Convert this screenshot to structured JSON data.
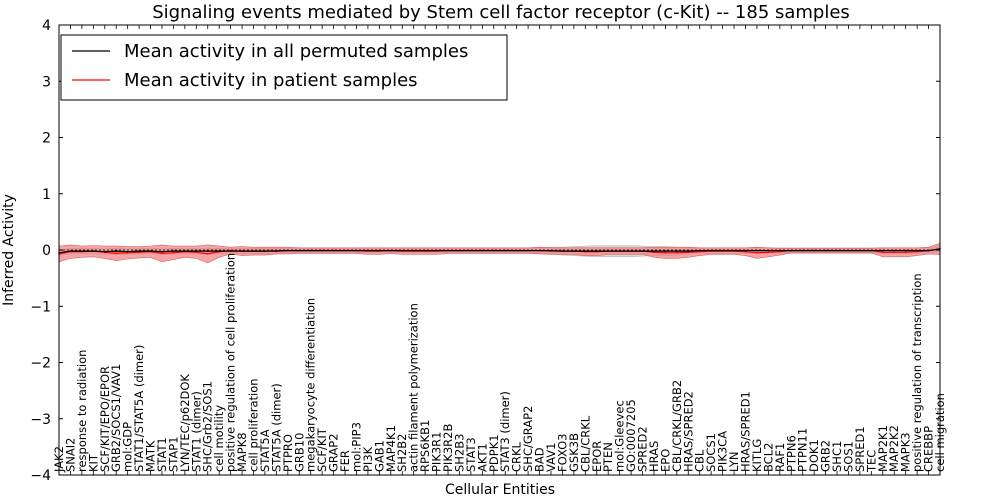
{
  "chart_data": {
    "type": "line",
    "title": "Signaling events mediated by Stem cell factor receptor (c-Kit) -- 185 samples",
    "xlabel": "Cellular Entities",
    "ylabel": "Inferred Activity",
    "ylim": [
      -4,
      4
    ],
    "yticks": [
      "4",
      "3",
      "2",
      "1",
      "0",
      "−1",
      "−2",
      "−3",
      "−4"
    ],
    "legend_position": "top-left",
    "legend": [
      "Mean activity in all permuted samples",
      "Mean activity in patient samples"
    ],
    "colors": {
      "permuted": "#000000",
      "patient": "#ff0000",
      "patient_band": "#f08080",
      "permuted_band": "#cccccc"
    },
    "categories": [
      "JAK2",
      "SNAI2",
      "response to radiation",
      "KIT",
      "SCF/KIT/EPO/EPOR",
      "GRB2/SOCS1/VAV1",
      "mol:GDP",
      "STAT1/STAT5A (dimer)",
      "MATK",
      "STAT1",
      "STAP1",
      "LYN/TEC/p62DOK",
      "STAT1 (dimer)",
      "SHC/Grb2/SOS1",
      "cell motility",
      "positive regulation of cell proliferation",
      "MAPK8",
      "cell proliferation",
      "STAT5A",
      "STAT5A (dimer)",
      "PTPRO",
      "GRB10",
      "megakaryocyte differentiation",
      "SCF/KIT",
      "GRAP2",
      "FER",
      "mol:PIP3",
      "PI3K",
      "GAB1",
      "MAP4K1",
      "SH2B2",
      "actin filament polymerization",
      "RPS6KB1",
      "PIK3R1",
      "PIK3R2B",
      "SH2B3",
      "STAT3",
      "AKT1",
      "PDPK1",
      "STAT3 (dimer)",
      "CRKL",
      "SHC/GRAP2",
      "BAD",
      "VAV1",
      "FOXO3",
      "GSK3B",
      "CBL/CRKL",
      "EPOR",
      "PTEN",
      "mol:Gleevec",
      "GO:0007205",
      "SPRED2",
      "HRAS",
      "EPO",
      "CBL/CRKL/GRB2",
      "HRAS/SPRED2",
      "CBL",
      "SOCS1",
      "PIK3CA",
      "LYN",
      "HRAS/SPRED1",
      "KITLG",
      "BCL2",
      "RAF1",
      "PTPN6",
      "PTPN11",
      "DOK1",
      "GRB2",
      "SHC1",
      "SOS1",
      "SPRED1",
      "TEC",
      "MAP2K1",
      "MAP2K2",
      "MAPK3",
      "positive regulation of transcription",
      "CREBBP",
      "cell migration"
    ],
    "series": [
      {
        "name": "Mean activity in all permuted samples",
        "values": [
          -0.05,
          -0.02,
          -0.02,
          -0.02,
          -0.03,
          -0.02,
          -0.03,
          -0.02,
          -0.02,
          -0.03,
          -0.02,
          -0.02,
          -0.02,
          -0.02,
          -0.02,
          -0.02,
          -0.02,
          -0.02,
          -0.02,
          -0.02,
          -0.01,
          -0.01,
          -0.01,
          -0.01,
          -0.01,
          -0.01,
          -0.01,
          -0.01,
          -0.01,
          -0.01,
          -0.01,
          -0.01,
          -0.01,
          -0.01,
          -0.01,
          -0.01,
          -0.01,
          -0.01,
          -0.01,
          -0.01,
          -0.01,
          -0.01,
          -0.01,
          -0.01,
          -0.02,
          -0.02,
          -0.02,
          -0.02,
          -0.02,
          -0.02,
          -0.02,
          -0.02,
          -0.02,
          -0.02,
          -0.02,
          -0.02,
          -0.01,
          -0.01,
          -0.01,
          -0.01,
          -0.01,
          -0.01,
          -0.01,
          -0.01,
          -0.01,
          -0.01,
          -0.01,
          -0.01,
          -0.01,
          -0.01,
          -0.01,
          -0.01,
          -0.01,
          -0.01,
          -0.01,
          -0.01,
          -0.01,
          0.02
        ]
      },
      {
        "name": "Mean activity in patient samples",
        "values": [
          -0.07,
          -0.03,
          -0.03,
          -0.02,
          -0.04,
          -0.06,
          -0.05,
          -0.04,
          -0.03,
          -0.06,
          -0.05,
          -0.03,
          -0.04,
          -0.07,
          -0.03,
          -0.01,
          -0.02,
          -0.02,
          -0.02,
          -0.01,
          -0.01,
          -0.01,
          -0.01,
          -0.01,
          -0.01,
          -0.01,
          -0.01,
          -0.02,
          -0.02,
          -0.01,
          -0.02,
          -0.02,
          -0.02,
          -0.02,
          -0.01,
          -0.01,
          -0.01,
          -0.01,
          -0.01,
          -0.01,
          -0.01,
          -0.01,
          -0.01,
          -0.02,
          -0.02,
          -0.02,
          -0.03,
          -0.03,
          -0.02,
          -0.02,
          -0.02,
          -0.02,
          -0.04,
          -0.05,
          -0.05,
          -0.04,
          -0.03,
          -0.02,
          -0.02,
          -0.02,
          -0.03,
          -0.05,
          -0.04,
          -0.03,
          -0.01,
          -0.01,
          -0.01,
          -0.01,
          -0.01,
          -0.01,
          -0.01,
          -0.01,
          -0.04,
          -0.04,
          -0.04,
          -0.03,
          -0.01,
          0.02
        ]
      }
    ],
    "patient_band_halfwidth": [
      0.14,
      0.12,
      0.1,
      0.1,
      0.11,
      0.13,
      0.11,
      0.1,
      0.1,
      0.15,
      0.12,
      0.1,
      0.11,
      0.16,
      0.1,
      0.06,
      0.08,
      0.07,
      0.07,
      0.06,
      0.06,
      0.05,
      0.05,
      0.05,
      0.05,
      0.05,
      0.05,
      0.06,
      0.06,
      0.05,
      0.06,
      0.06,
      0.06,
      0.06,
      0.05,
      0.05,
      0.05,
      0.05,
      0.05,
      0.05,
      0.05,
      0.05,
      0.06,
      0.06,
      0.06,
      0.06,
      0.07,
      0.07,
      0.06,
      0.06,
      0.06,
      0.06,
      0.09,
      0.1,
      0.1,
      0.09,
      0.07,
      0.06,
      0.06,
      0.06,
      0.07,
      0.1,
      0.08,
      0.06,
      0.04,
      0.04,
      0.04,
      0.04,
      0.04,
      0.04,
      0.04,
      0.04,
      0.08,
      0.08,
      0.08,
      0.07,
      0.06,
      0.1
    ],
    "permuted_band_halfwidth": [
      0.05,
      0.05,
      0.05,
      0.05,
      0.05,
      0.05,
      0.05,
      0.05,
      0.05,
      0.05,
      0.05,
      0.05,
      0.05,
      0.05,
      0.05,
      0.05,
      0.05,
      0.05,
      0.05,
      0.05,
      0.04,
      0.04,
      0.04,
      0.04,
      0.04,
      0.04,
      0.04,
      0.04,
      0.04,
      0.04,
      0.04,
      0.04,
      0.04,
      0.04,
      0.04,
      0.04,
      0.04,
      0.04,
      0.04,
      0.04,
      0.04,
      0.04,
      0.05,
      0.06,
      0.07,
      0.08,
      0.09,
      0.1,
      0.1,
      0.1,
      0.1,
      0.09,
      0.08,
      0.08,
      0.07,
      0.06,
      0.05,
      0.05,
      0.05,
      0.05,
      0.05,
      0.05,
      0.05,
      0.05,
      0.05,
      0.05,
      0.05,
      0.05,
      0.05,
      0.05,
      0.05,
      0.05,
      0.05,
      0.05,
      0.05,
      0.05,
      0.05,
      0.05
    ]
  }
}
